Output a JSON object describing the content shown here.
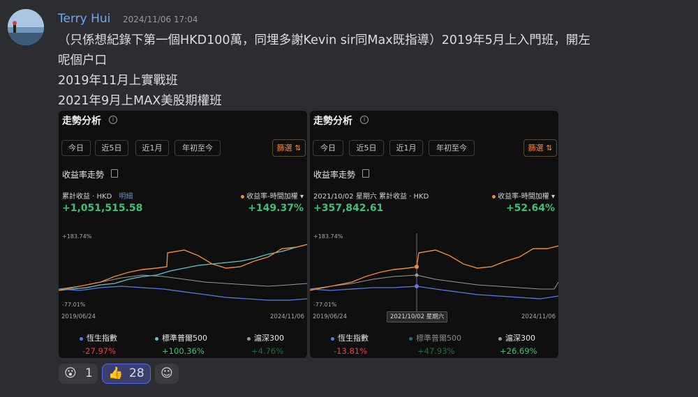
{
  "author": "Terry Hui",
  "timestamp": "2024/11/06 17:04",
  "message": [
    "（只係想紀錄下第一個HKD100萬，同埋多謝Kevin sir同Max既指導）2019年5月上入門班，開左",
    "呢個户口",
    "2019年11月上實戰班",
    "2021年9月上MAX美股期權班"
  ],
  "colors": {
    "portfolio": "#f08a3a",
    "hsi": "#5f7ae8",
    "sp500": "#5ac8d0",
    "csi300": "#9a9a9a",
    "gain": "#3fc078",
    "loss": "#e8414e"
  },
  "cards": [
    {
      "title": "走勢分析",
      "chips": [
        "今日",
        "近5日",
        "近1月",
        "年初至今"
      ],
      "filter": "篩選",
      "section": "收益率走勢",
      "cum_label": "累計收益 · HKD",
      "detail": "明細",
      "rate_label": "收益率-時間加權",
      "cum_value": "+1,051,515.58",
      "rate_value": "+149.37%",
      "y_top": "+183.74%",
      "y_bottom": "-77.01%",
      "x_start": "2019/06/24",
      "x_end": "2024/11/06",
      "legend": [
        {
          "name": "恆生指數",
          "value": "-27.97%"
        },
        {
          "name": "標準普爾500",
          "value": "+100.36%"
        },
        {
          "name": "滬深300",
          "value": "+4.76%"
        }
      ]
    },
    {
      "title": "走勢分析",
      "chips": [
        "今日",
        "近5日",
        "近1月",
        "年初至今"
      ],
      "filter": "篩選",
      "section": "收益率走勢",
      "cum_label": "2021/10/02 星期六 累計收益 · HKD",
      "rate_label": "收益率-時間加權",
      "cum_value": "+357,842.61",
      "rate_value": "+52.64%",
      "y_top": "+183.74%",
      "y_bottom": "-77.01%",
      "x_start": "2019/06/24",
      "x_end": "2024/11/06",
      "tooltip": "2021/10/02 星期六",
      "legend": [
        {
          "name": "恆生指數",
          "value": "-13.81%"
        },
        {
          "name": "標準普爾500",
          "value": "+47.93%"
        },
        {
          "name": "滬深300",
          "value": "+26.69%"
        }
      ]
    }
  ],
  "reactions": [
    {
      "emoji": "😮",
      "count": "1",
      "icon": "surprised-face-icon"
    },
    {
      "emoji": "👍",
      "count": "28",
      "icon": "thumbs-up-icon"
    },
    {
      "emoji": "☺",
      "icon": "add-reaction-icon"
    }
  ]
}
